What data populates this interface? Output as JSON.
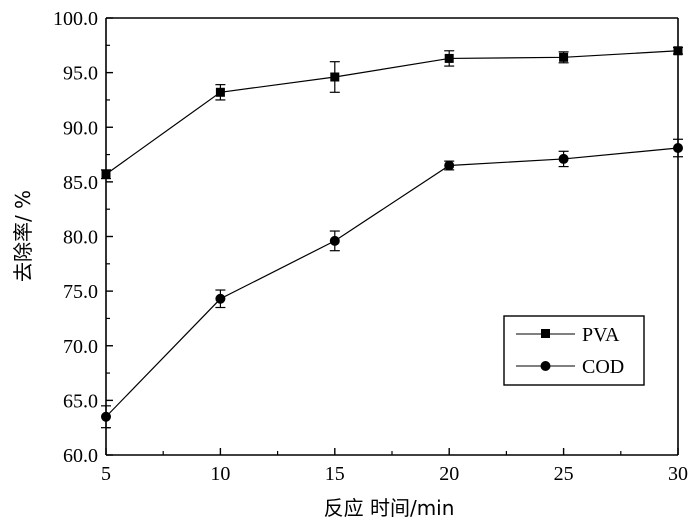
{
  "chart_data": {
    "type": "line",
    "title": "",
    "xlabel": "反应 时间/min",
    "ylabel": "去除率/ %",
    "x": [
      5,
      10,
      15,
      20,
      25,
      30
    ],
    "xlim": [
      5,
      30
    ],
    "ylim": [
      60.0,
      100.0
    ],
    "x_ticks": [
      "5",
      "10",
      "15",
      "20",
      "25",
      "30"
    ],
    "y_ticks": [
      "60.0",
      "65.0",
      "70.0",
      "75.0",
      "80.0",
      "85.0",
      "90.0",
      "95.0",
      "100.0"
    ],
    "grid": false,
    "legend_position": "bottom-right",
    "series": [
      {
        "name": "PVA",
        "marker": "square",
        "values": [
          85.7,
          93.2,
          94.6,
          96.3,
          96.4,
          97.0
        ],
        "errors": [
          0.4,
          0.7,
          1.4,
          0.7,
          0.5,
          0.3
        ]
      },
      {
        "name": "COD",
        "marker": "circle",
        "values": [
          63.5,
          74.3,
          79.6,
          86.5,
          87.1,
          88.1
        ],
        "errors": [
          1.0,
          0.8,
          0.9,
          0.4,
          0.7,
          0.8
        ]
      }
    ]
  }
}
